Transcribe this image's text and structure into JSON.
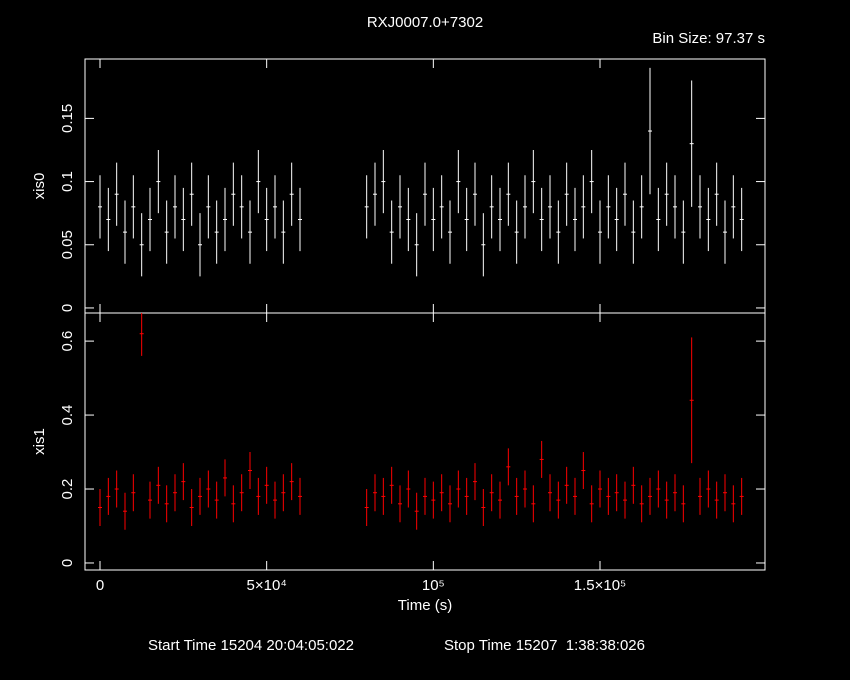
{
  "chart_data": [
    {
      "type": "scatter",
      "title": "RXJ0007.0+7302",
      "subtitle": "Bin Size: 97.37 s",
      "ylabel": "xis0",
      "color": "#ffffff",
      "x": [
        0,
        2500,
        5000,
        7500,
        10000,
        12500,
        15000,
        17500,
        20000,
        22500,
        25000,
        27500,
        30000,
        32500,
        35000,
        37500,
        40000,
        42500,
        45000,
        47500,
        50000,
        52500,
        55000,
        57500,
        60000,
        80000,
        82500,
        85000,
        87500,
        90000,
        92500,
        95000,
        97500,
        100000,
        102500,
        105000,
        107500,
        110000,
        112500,
        115000,
        117500,
        120000,
        122500,
        125000,
        127500,
        130000,
        132500,
        135000,
        137500,
        140000,
        142500,
        145000,
        147500,
        150000,
        152500,
        155000,
        157500,
        160000,
        162500,
        165000,
        167500,
        170000,
        172500,
        175000,
        177500,
        180000,
        182500,
        185000,
        187500,
        190000,
        192500
      ],
      "values": [
        0.08,
        0.07,
        0.09,
        0.06,
        0.08,
        0.05,
        0.07,
        0.1,
        0.06,
        0.08,
        0.07,
        0.09,
        0.05,
        0.08,
        0.06,
        0.07,
        0.09,
        0.08,
        0.06,
        0.1,
        0.07,
        0.08,
        0.06,
        0.09,
        0.07,
        0.08,
        0.09,
        0.1,
        0.06,
        0.08,
        0.07,
        0.05,
        0.09,
        0.07,
        0.08,
        0.06,
        0.1,
        0.07,
        0.09,
        0.05,
        0.08,
        0.07,
        0.09,
        0.06,
        0.08,
        0.1,
        0.07,
        0.08,
        0.06,
        0.09,
        0.07,
        0.08,
        0.1,
        0.06,
        0.08,
        0.07,
        0.09,
        0.06,
        0.08,
        0.14,
        0.07,
        0.09,
        0.08,
        0.06,
        0.13,
        0.08,
        0.07,
        0.09,
        0.06,
        0.08,
        0.07
      ],
      "yerr": [
        0.025,
        0.025,
        0.025,
        0.025,
        0.025,
        0.025,
        0.025,
        0.025,
        0.025,
        0.025,
        0.025,
        0.025,
        0.025,
        0.025,
        0.025,
        0.025,
        0.025,
        0.025,
        0.025,
        0.025,
        0.025,
        0.025,
        0.025,
        0.025,
        0.025,
        0.025,
        0.025,
        0.025,
        0.025,
        0.025,
        0.025,
        0.025,
        0.025,
        0.025,
        0.025,
        0.025,
        0.025,
        0.025,
        0.025,
        0.025,
        0.025,
        0.025,
        0.025,
        0.025,
        0.025,
        0.025,
        0.025,
        0.025,
        0.025,
        0.025,
        0.025,
        0.025,
        0.025,
        0.025,
        0.025,
        0.025,
        0.025,
        0.025,
        0.025,
        0.05,
        0.025,
        0.025,
        0.025,
        0.025,
        0.05,
        0.025,
        0.025,
        0.025,
        0.025,
        0.025,
        0.025
      ],
      "xlim": [
        -4500,
        199500
      ],
      "ylim": [
        -0.004,
        0.197
      ],
      "yticks": [
        0,
        0.05,
        0.1,
        0.15
      ]
    },
    {
      "type": "scatter",
      "xlabel": "Time (s)",
      "ylabel": "xis1",
      "color": "#ff0000",
      "start_time": "Start Time 15204 20:04:05:022",
      "stop_time": "Stop Time 15207  1:38:38:026",
      "x": [
        0,
        2500,
        5000,
        7500,
        10000,
        12500,
        15000,
        17500,
        20000,
        22500,
        25000,
        27500,
        30000,
        32500,
        35000,
        37500,
        40000,
        42500,
        45000,
        47500,
        50000,
        52500,
        55000,
        57500,
        60000,
        80000,
        82500,
        85000,
        87500,
        90000,
        92500,
        95000,
        97500,
        100000,
        102500,
        105000,
        107500,
        110000,
        112500,
        115000,
        117500,
        120000,
        122500,
        125000,
        127500,
        130000,
        132500,
        135000,
        137500,
        140000,
        142500,
        145000,
        147500,
        150000,
        152500,
        155000,
        157500,
        160000,
        162500,
        165000,
        167500,
        170000,
        172500,
        175000,
        177500,
        180000,
        182500,
        185000,
        187500,
        190000,
        192500
      ],
      "values": [
        0.15,
        0.18,
        0.2,
        0.14,
        0.19,
        0.62,
        0.17,
        0.21,
        0.16,
        0.19,
        0.22,
        0.15,
        0.18,
        0.2,
        0.17,
        0.23,
        0.16,
        0.19,
        0.25,
        0.18,
        0.21,
        0.17,
        0.19,
        0.22,
        0.18,
        0.15,
        0.19,
        0.18,
        0.21,
        0.16,
        0.2,
        0.14,
        0.18,
        0.17,
        0.19,
        0.16,
        0.2,
        0.18,
        0.22,
        0.15,
        0.19,
        0.17,
        0.26,
        0.18,
        0.2,
        0.16,
        0.28,
        0.19,
        0.17,
        0.21,
        0.18,
        0.25,
        0.16,
        0.2,
        0.18,
        0.19,
        0.17,
        0.21,
        0.16,
        0.18,
        0.2,
        0.17,
        0.19,
        0.16,
        0.44,
        0.18,
        0.2,
        0.17,
        0.19,
        0.16,
        0.18
      ],
      "yerr": [
        0.05,
        0.05,
        0.05,
        0.05,
        0.05,
        0.06,
        0.05,
        0.05,
        0.05,
        0.05,
        0.05,
        0.05,
        0.05,
        0.05,
        0.05,
        0.05,
        0.05,
        0.05,
        0.05,
        0.05,
        0.05,
        0.05,
        0.05,
        0.05,
        0.05,
        0.05,
        0.05,
        0.05,
        0.05,
        0.05,
        0.05,
        0.05,
        0.05,
        0.05,
        0.05,
        0.05,
        0.05,
        0.05,
        0.05,
        0.05,
        0.05,
        0.05,
        0.05,
        0.05,
        0.05,
        0.05,
        0.05,
        0.05,
        0.05,
        0.05,
        0.05,
        0.05,
        0.05,
        0.05,
        0.05,
        0.05,
        0.05,
        0.05,
        0.05,
        0.05,
        0.05,
        0.05,
        0.05,
        0.05,
        0.17,
        0.05,
        0.05,
        0.05,
        0.05,
        0.05,
        0.05
      ],
      "xlim": [
        -4500,
        199500
      ],
      "ylim": [
        -0.019,
        0.676
      ],
      "yticks": [
        0,
        0.2,
        0.4,
        0.6
      ],
      "xticks": [
        0,
        {
          "value": 50000,
          "label": "5×10⁴"
        },
        {
          "value": 100000,
          "label": "10⁵"
        },
        {
          "value": 150000,
          "label": "1.5×10⁵"
        }
      ]
    }
  ]
}
